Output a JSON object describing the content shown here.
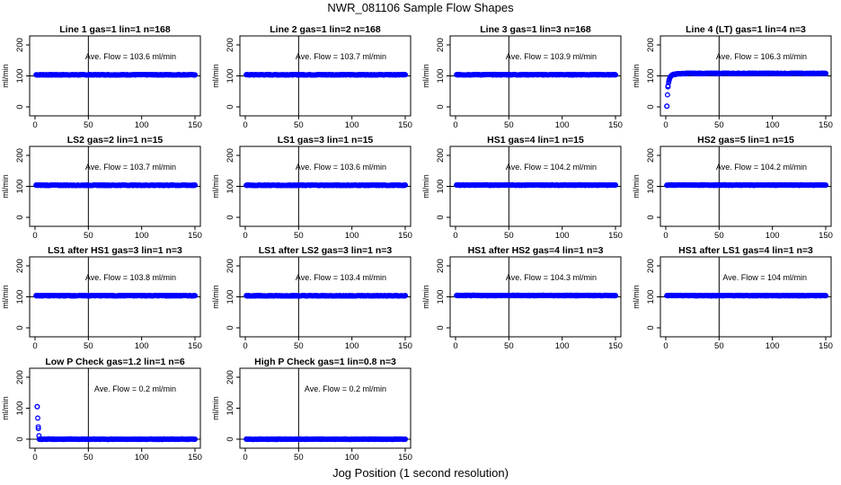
{
  "figure": {
    "title": "NWR_081106  Sample Flow Shapes",
    "xlabel": "Jog Position (1 second resolution)",
    "colors": {
      "points": "#0000ff",
      "axes": "#000000",
      "background": "#ffffff"
    }
  },
  "chart_data": [
    {
      "type": "scatter",
      "title": "Line 1 gas=1 lin=1 n=168",
      "ylabel": "ml/min",
      "annotation": "Ave. Flow = 103.6  ml/min",
      "xlim": [
        0,
        150
      ],
      "ylim": [
        0,
        200
      ],
      "xticks": [
        0,
        50,
        100,
        150
      ],
      "yticks": [
        0,
        100,
        200
      ],
      "vline": 50,
      "hline": 100,
      "profile": "flat",
      "mean": 103.6,
      "series": [
        {
          "x": [
            1,
            150
          ],
          "y": [
            103.6,
            103.6
          ]
        }
      ]
    },
    {
      "type": "scatter",
      "title": "Line 2 gas=1 lin=2 n=168",
      "ylabel": "ml/min",
      "annotation": "Ave. Flow = 103.7  ml/min",
      "xlim": [
        0,
        150
      ],
      "ylim": [
        0,
        200
      ],
      "xticks": [
        0,
        50,
        100,
        150
      ],
      "yticks": [
        0,
        100,
        200
      ],
      "vline": 50,
      "hline": 100,
      "profile": "flat",
      "mean": 103.7,
      "series": [
        {
          "x": [
            1,
            150
          ],
          "y": [
            103.7,
            103.7
          ]
        }
      ]
    },
    {
      "type": "scatter",
      "title": "Line 3 gas=1 lin=3 n=168",
      "ylabel": "ml/min",
      "annotation": "Ave. Flow = 103.9  ml/min",
      "xlim": [
        0,
        150
      ],
      "ylim": [
        0,
        200
      ],
      "xticks": [
        0,
        50,
        100,
        150
      ],
      "yticks": [
        0,
        100,
        200
      ],
      "vline": 50,
      "hline": 100,
      "profile": "flat",
      "mean": 103.9,
      "series": [
        {
          "x": [
            1,
            150
          ],
          "y": [
            103.9,
            103.9
          ]
        }
      ]
    },
    {
      "type": "scatter",
      "title": "Line 4 (LT) gas=1 lin=4 n=3",
      "ylabel": "ml/min",
      "annotation": "Ave. Flow = 106.3  ml/min",
      "xlim": [
        0,
        150
      ],
      "ylim": [
        0,
        200
      ],
      "xticks": [
        0,
        50,
        100,
        150
      ],
      "yticks": [
        0,
        100,
        200
      ],
      "vline": 50,
      "hline": 100,
      "profile": "rise",
      "mean": 106.3,
      "series": [
        {
          "x": [
            1,
            2,
            3,
            4,
            5,
            6,
            8,
            10,
            14,
            20,
            26,
            150
          ],
          "y": [
            2,
            65,
            85,
            96,
            100,
            103,
            105,
            106,
            107,
            108,
            108,
            108
          ]
        }
      ]
    },
    {
      "type": "scatter",
      "title": "LS2 gas=2 lin=1 n=15",
      "ylabel": "ml/min",
      "annotation": "Ave. Flow = 103.7  ml/min",
      "xlim": [
        0,
        150
      ],
      "ylim": [
        0,
        200
      ],
      "xticks": [
        0,
        50,
        100,
        150
      ],
      "yticks": [
        0,
        100,
        200
      ],
      "vline": 50,
      "hline": 100,
      "profile": "flat",
      "mean": 103.7,
      "series": [
        {
          "x": [
            1,
            150
          ],
          "y": [
            103.7,
            103.7
          ]
        }
      ]
    },
    {
      "type": "scatter",
      "title": "LS1 gas=3 lin=1 n=15",
      "ylabel": "ml/min",
      "annotation": "Ave. Flow = 103.6  ml/min",
      "xlim": [
        0,
        150
      ],
      "ylim": [
        0,
        200
      ],
      "xticks": [
        0,
        50,
        100,
        150
      ],
      "yticks": [
        0,
        100,
        200
      ],
      "vline": 50,
      "hline": 100,
      "profile": "flat",
      "mean": 103.6,
      "series": [
        {
          "x": [
            1,
            150
          ],
          "y": [
            103.6,
            103.6
          ]
        }
      ]
    },
    {
      "type": "scatter",
      "title": "HS1 gas=4 lin=1 n=15",
      "ylabel": "ml/min",
      "annotation": "Ave. Flow = 104.2  ml/min",
      "xlim": [
        0,
        150
      ],
      "ylim": [
        0,
        200
      ],
      "xticks": [
        0,
        50,
        100,
        150
      ],
      "yticks": [
        0,
        100,
        200
      ],
      "vline": 50,
      "hline": 100,
      "profile": "flat",
      "mean": 104.2,
      "series": [
        {
          "x": [
            1,
            150
          ],
          "y": [
            104.2,
            104.2
          ]
        }
      ]
    },
    {
      "type": "scatter",
      "title": "HS2 gas=5 lin=1 n=15",
      "ylabel": "ml/min",
      "annotation": "Ave. Flow = 104.2  ml/min",
      "xlim": [
        0,
        150
      ],
      "ylim": [
        0,
        200
      ],
      "xticks": [
        0,
        50,
        100,
        150
      ],
      "yticks": [
        0,
        100,
        200
      ],
      "vline": 50,
      "hline": 100,
      "profile": "flat",
      "mean": 104.2,
      "series": [
        {
          "x": [
            1,
            150
          ],
          "y": [
            104.2,
            104.2
          ]
        }
      ]
    },
    {
      "type": "scatter",
      "title": "LS1 after HS1 gas=3 lin=1 n=3",
      "ylabel": "ml/min",
      "annotation": "Ave. Flow = 103.8  ml/min",
      "xlim": [
        0,
        150
      ],
      "ylim": [
        0,
        200
      ],
      "xticks": [
        0,
        50,
        100,
        150
      ],
      "yticks": [
        0,
        100,
        200
      ],
      "vline": 50,
      "hline": 100,
      "profile": "flat",
      "mean": 103.8,
      "series": [
        {
          "x": [
            1,
            150
          ],
          "y": [
            103.8,
            103.8
          ]
        }
      ]
    },
    {
      "type": "scatter",
      "title": "LS1 after LS2 gas=3 lin=1 n=3",
      "ylabel": "ml/min",
      "annotation": "Ave. Flow = 103.4  ml/min",
      "xlim": [
        0,
        150
      ],
      "ylim": [
        0,
        200
      ],
      "xticks": [
        0,
        50,
        100,
        150
      ],
      "yticks": [
        0,
        100,
        200
      ],
      "vline": 50,
      "hline": 100,
      "profile": "flat",
      "mean": 103.4,
      "series": [
        {
          "x": [
            1,
            150
          ],
          "y": [
            103.4,
            103.4
          ]
        }
      ]
    },
    {
      "type": "scatter",
      "title": "HS1 after HS2 gas=4 lin=1 n=3",
      "ylabel": "ml/min",
      "annotation": "Ave. Flow = 104.3  ml/min",
      "xlim": [
        0,
        150
      ],
      "ylim": [
        0,
        200
      ],
      "xticks": [
        0,
        50,
        100,
        150
      ],
      "yticks": [
        0,
        100,
        200
      ],
      "vline": 50,
      "hline": 100,
      "profile": "flat",
      "mean": 104.3,
      "series": [
        {
          "x": [
            1,
            150
          ],
          "y": [
            104.3,
            104.3
          ]
        }
      ]
    },
    {
      "type": "scatter",
      "title": "HS1 after LS1 gas=4 lin=1 n=3",
      "ylabel": "ml/min",
      "annotation": "Ave. Flow = 104  ml/min",
      "xlim": [
        0,
        150
      ],
      "ylim": [
        0,
        200
      ],
      "xticks": [
        0,
        50,
        100,
        150
      ],
      "yticks": [
        0,
        100,
        200
      ],
      "vline": 50,
      "hline": 100,
      "profile": "flat",
      "mean": 104,
      "series": [
        {
          "x": [
            1,
            150
          ],
          "y": [
            104,
            104
          ]
        }
      ]
    },
    {
      "type": "scatter",
      "title": "Low P Check gas=1.2 lin=1 n=6",
      "ylabel": "ml/min",
      "annotation": "Ave. Flow = 0.2  ml/min",
      "xlim": [
        0,
        150
      ],
      "ylim": [
        0,
        200
      ],
      "xticks": [
        0,
        50,
        100,
        150
      ],
      "yticks": [
        0,
        100,
        200
      ],
      "vline": 50,
      "hline": 0,
      "profile": "zero",
      "mean": 0.2,
      "series": [
        {
          "x": [
            2,
            3,
            4,
            150
          ],
          "y": [
            105,
            40,
            0,
            0
          ]
        }
      ]
    },
    {
      "type": "scatter",
      "title": "High P Check gas=1 lin=0.8 n=3",
      "ylabel": "ml/min",
      "annotation": "Ave. Flow = 0.2  ml/min",
      "xlim": [
        0,
        150
      ],
      "ylim": [
        0,
        200
      ],
      "xticks": [
        0,
        50,
        100,
        150
      ],
      "yticks": [
        0,
        100,
        200
      ],
      "vline": 50,
      "hline": 0,
      "profile": "zero",
      "mean": 0.2,
      "series": [
        {
          "x": [
            1,
            150
          ],
          "y": [
            0,
            0
          ]
        }
      ]
    }
  ]
}
